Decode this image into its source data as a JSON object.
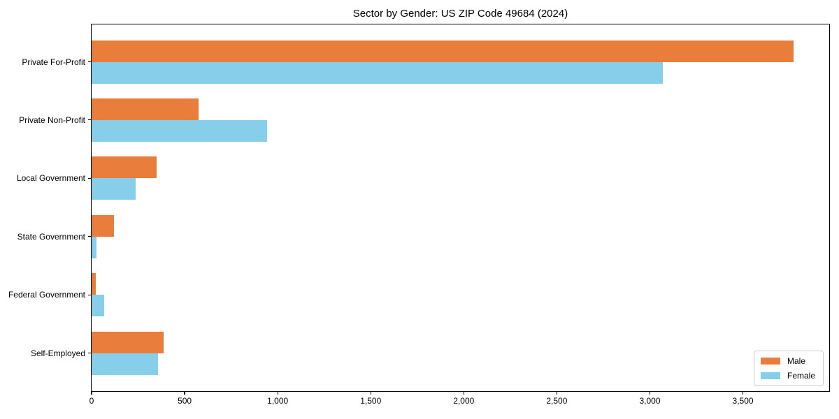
{
  "chart_data": {
    "type": "bar",
    "orientation": "horizontal",
    "title": "Sector by Gender: US ZIP Code 49684 (2024)",
    "categories": [
      "Private For-Profit",
      "Private Non-Profit",
      "Local Government",
      "State Government",
      "Federal Government",
      "Self-Employed"
    ],
    "series": [
      {
        "name": "Male",
        "color": "#e87d3c",
        "values": [
          3772,
          576,
          349,
          119,
          22,
          387
        ]
      },
      {
        "name": "Female",
        "color": "#87ceeb",
        "values": [
          3068,
          944,
          235,
          28,
          68,
          356
        ]
      }
    ],
    "xlabel": "",
    "ylabel": "",
    "xlim": [
      0,
      3960
    ],
    "x_ticks": [
      0,
      500,
      1000,
      1500,
      2000,
      2500,
      3000,
      3500
    ],
    "x_tick_labels": [
      "0",
      "500",
      "1,000",
      "1,500",
      "2,000",
      "2,500",
      "3,000",
      "3,500"
    ],
    "grid": false,
    "legend": {
      "position": "lower right",
      "entries": [
        "Male",
        "Female"
      ]
    }
  }
}
